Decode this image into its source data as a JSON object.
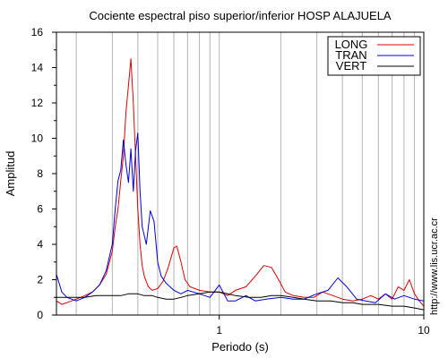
{
  "chart_data": {
    "type": "line",
    "title": "Cociente espectral piso superior/inferior  HOSP ALAJUELA",
    "xlabel": "Periodo (s)",
    "ylabel": "Amplitud",
    "xscale": "log",
    "xlim": [
      0.16,
      10
    ],
    "ylim": [
      0,
      16
    ],
    "x_ticks": [
      1,
      10
    ],
    "x_tick_labels": [
      "1",
      "10"
    ],
    "y_ticks": [
      0,
      2,
      4,
      6,
      8,
      10,
      12,
      14,
      16
    ],
    "y_tick_labels": [
      "0",
      "2",
      "4",
      "6",
      "8",
      "10",
      "12",
      "14",
      "16"
    ],
    "grid": "x-minor-vertical",
    "legend_position": "top-right",
    "annotation": "http://www.lis.ucr.ac.cr",
    "series": [
      {
        "name": "LONG",
        "color": "#e00000",
        "x": [
          0.16,
          0.17,
          0.18,
          0.2,
          0.22,
          0.24,
          0.26,
          0.28,
          0.3,
          0.31,
          0.32,
          0.33,
          0.34,
          0.35,
          0.36,
          0.37,
          0.38,
          0.39,
          0.4,
          0.41,
          0.42,
          0.43,
          0.45,
          0.47,
          0.5,
          0.53,
          0.56,
          0.6,
          0.62,
          0.65,
          0.68,
          0.72,
          0.8,
          0.9,
          1.0,
          1.1,
          1.2,
          1.35,
          1.5,
          1.65,
          1.8,
          1.95,
          2.1,
          2.3,
          2.6,
          2.9,
          3.2,
          3.6,
          4.0,
          4.5,
          5.0,
          5.5,
          6.0,
          6.5,
          7.0,
          7.5,
          8.0,
          8.5,
          9.0,
          9.5,
          10.0
        ],
        "y": [
          0.8,
          0.6,
          0.7,
          0.9,
          1.1,
          1.3,
          1.7,
          2.3,
          3.6,
          5.0,
          6.0,
          7.6,
          9.0,
          11.5,
          13.0,
          14.5,
          12.0,
          9.0,
          6.0,
          4.0,
          2.8,
          2.2,
          1.6,
          1.4,
          1.5,
          1.9,
          2.6,
          3.8,
          3.9,
          3.0,
          2.0,
          1.6,
          1.4,
          1.3,
          1.3,
          1.1,
          1.4,
          1.6,
          2.2,
          2.8,
          2.7,
          2.0,
          1.3,
          1.1,
          1.0,
          1.0,
          1.3,
          1.1,
          0.9,
          0.8,
          0.9,
          1.1,
          0.9,
          1.2,
          0.9,
          1.6,
          1.4,
          2.0,
          1.2,
          0.8,
          0.5
        ]
      },
      {
        "name": "TRAN",
        "color": "#0000dd",
        "x": [
          0.16,
          0.17,
          0.18,
          0.2,
          0.22,
          0.24,
          0.26,
          0.28,
          0.3,
          0.31,
          0.32,
          0.33,
          0.34,
          0.35,
          0.36,
          0.37,
          0.38,
          0.39,
          0.4,
          0.41,
          0.42,
          0.44,
          0.46,
          0.48,
          0.5,
          0.52,
          0.55,
          0.6,
          0.65,
          0.7,
          0.8,
          0.9,
          1.0,
          1.1,
          1.2,
          1.35,
          1.5,
          1.7,
          2.0,
          2.3,
          2.6,
          3.0,
          3.4,
          3.8,
          4.2,
          4.7,
          5.2,
          5.8,
          6.5,
          7.2,
          8.0,
          9.0,
          10.0
        ],
        "y": [
          2.3,
          1.3,
          1.0,
          0.8,
          1.0,
          1.3,
          1.7,
          2.5,
          4.0,
          6.0,
          7.6,
          8.2,
          9.9,
          8.5,
          7.5,
          9.4,
          7.0,
          9.3,
          10.3,
          7.0,
          5.0,
          4.0,
          5.9,
          5.3,
          3.0,
          2.2,
          1.8,
          1.4,
          1.2,
          1.4,
          1.2,
          1.0,
          1.7,
          0.8,
          0.8,
          1.1,
          0.8,
          0.9,
          1.0,
          0.9,
          0.9,
          1.2,
          1.4,
          2.1,
          1.6,
          0.9,
          0.8,
          0.7,
          1.2,
          0.9,
          1.1,
          0.9,
          0.8
        ]
      },
      {
        "name": "VERT",
        "color": "#000000",
        "x": [
          0.16,
          0.18,
          0.2,
          0.22,
          0.25,
          0.28,
          0.3,
          0.33,
          0.36,
          0.38,
          0.4,
          0.43,
          0.47,
          0.5,
          0.55,
          0.6,
          0.65,
          0.7,
          0.8,
          0.9,
          1.0,
          1.1,
          1.2,
          1.4,
          1.6,
          1.8,
          2.0,
          2.3,
          2.6,
          3.0,
          3.5,
          4.0,
          4.5,
          5.0,
          6.0,
          7.0,
          8.0,
          9.0,
          10.0
        ],
        "y": [
          1.0,
          1.0,
          1.0,
          1.0,
          1.1,
          1.1,
          1.1,
          1.1,
          1.2,
          1.2,
          1.2,
          1.1,
          1.1,
          1.0,
          0.9,
          0.9,
          1.0,
          1.1,
          1.2,
          1.3,
          1.3,
          1.2,
          1.1,
          1.0,
          1.0,
          1.1,
          1.1,
          1.0,
          0.9,
          0.8,
          0.8,
          0.7,
          0.7,
          0.6,
          0.6,
          0.5,
          0.5,
          0.4,
          0.3
        ]
      }
    ]
  }
}
